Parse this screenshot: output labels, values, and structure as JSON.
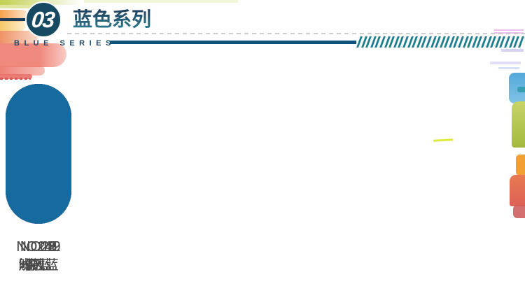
{
  "header": {
    "badge_number": "03",
    "title": "蓝色系列",
    "subtitle": "BLUE SERIES"
  },
  "swatches": [
    {
      "code": "NO28",
      "name": "深蓝",
      "color": "#113549"
    },
    {
      "code": "NO21",
      "name": "中蓝",
      "color": "#1d5377"
    },
    {
      "code": "NO15",
      "name": "天蓝",
      "color": "#207b8b"
    },
    {
      "code": "NO19",
      "name": "浅天蓝",
      "color": "#16b2bd"
    },
    {
      "code": "NO219",
      "name": "时风蓝",
      "color": "#1d2564"
    },
    {
      "code": "NO142",
      "name": "解放蓝",
      "color": "#176a9e"
    }
  ],
  "colors": {
    "accent_teal": "#1f7e8d",
    "header_navy": "#1c4866",
    "solid_line": "#0e527c",
    "label_text": "#4a4a4a"
  },
  "decor": {
    "hatch_count": 36
  }
}
